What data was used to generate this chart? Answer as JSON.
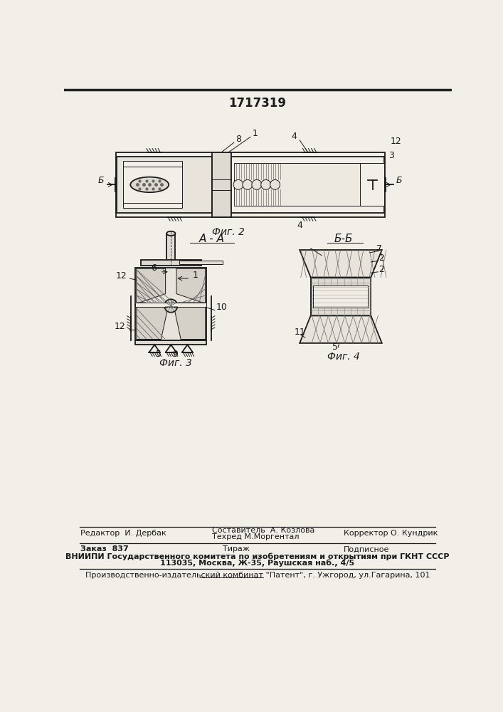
{
  "patent_number": "1717319",
  "bg_color": "#f2efe9",
  "line_color": "#1a1a1a",
  "top_border_color": "#222222",
  "footer": {
    "editor": "Редактор  И. Дербак",
    "composer": "Составитель  А. Козлова",
    "techred": "Техред М.Моргентал",
    "corrector": "Корректор О. Кундрик",
    "order": "Заказ  837",
    "tirazh": "Тираж",
    "podpisnoe": "Подписное",
    "vniipи_line1": "ВНИИПИ Государственного комитета по изобретениям и открытиям при ГКНТ СССР",
    "vniipи_line2": "113035, Москва, Ж-35, Раушская наб., 4/5",
    "publisher": "Производственно-издательский комбинат \"Патент\", г. Ужгород, ул.Гагарина, 101"
  },
  "fig2_label": "Фиг. 2",
  "fig3_label": "Фиг. 3",
  "fig4_label": "Фиг. 4",
  "section_aa": "А - А",
  "section_bb": "Б-Б"
}
